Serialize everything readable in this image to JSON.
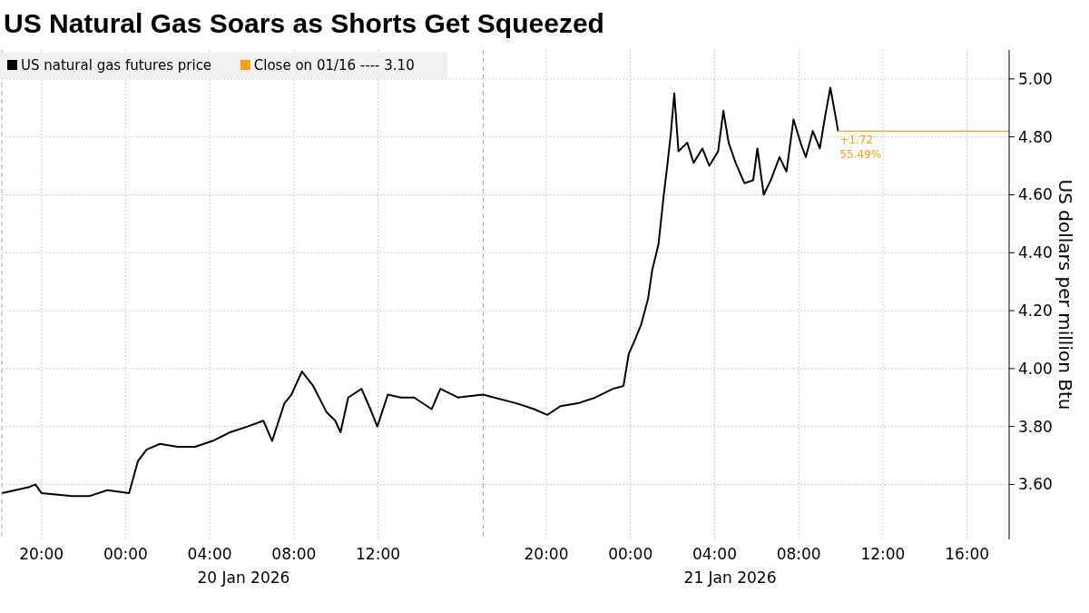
{
  "chart_data": {
    "type": "line",
    "title": "US Natural Gas Soars as Shorts Get Squeezed",
    "ylabel": "US dollars per million Btu",
    "xlim": [
      "2026-01-19T18:07",
      "2026-01-21T18:00"
    ],
    "xticks": [
      {
        "value": "2026-01-19T20:00",
        "label": "20:00"
      },
      {
        "value": "2026-01-20T00:00",
        "label": "00:00"
      },
      {
        "value": "2026-01-20T04:00",
        "label": "04:00"
      },
      {
        "value": "2026-01-20T08:00",
        "label": "08:00"
      },
      {
        "value": "2026-01-20T12:00",
        "label": "12:00"
      },
      {
        "value": "2026-01-20T20:00",
        "label": "20:00"
      },
      {
        "value": "2026-01-21T00:00",
        "label": "00:00"
      },
      {
        "value": "2026-01-21T04:00",
        "label": "04:00"
      },
      {
        "value": "2026-01-21T08:00",
        "label": "08:00"
      },
      {
        "value": "2026-01-21T12:00",
        "label": "12:00"
      },
      {
        "value": "2026-01-21T16:00",
        "label": "16:00"
      }
    ],
    "ylim": [
      3.41,
      5.1
    ],
    "yticks": [
      {
        "value": 3.6,
        "label": "3.60"
      },
      {
        "value": 3.8,
        "label": "3.80"
      },
      {
        "value": 4.0,
        "label": "4.00"
      },
      {
        "value": 4.2,
        "label": "4.20"
      },
      {
        "value": 4.4,
        "label": "4.40"
      },
      {
        "value": 4.6,
        "label": "4.60"
      },
      {
        "value": 4.8,
        "label": "4.80"
      },
      {
        "value": 5.0,
        "label": "5.00"
      }
    ],
    "grid": true,
    "legend": "top left",
    "marker": "none",
    "line_style": "solid",
    "ref_lines": [
      {
        "axis": "x",
        "value": "2026-01-19T18:07",
        "color": "#aaaaaa",
        "line_style": "dashed"
      },
      {
        "axis": "x",
        "value": "2026-01-20T17:00",
        "color": "#aaaaaa",
        "line_style": "dashed"
      }
    ],
    "annotations": [
      {
        "text": "+1.72",
        "x": "2026-01-21T09:52",
        "y": 4.82
      },
      {
        "text": "55.49%",
        "x": "2026-01-21T09:52",
        "y": 4.82
      },
      "20 Jan 2026",
      "21 Jan 2026"
    ],
    "series": [
      {
        "name": "US natural gas futures price",
        "color": "#000000",
        "x": [
          "2026-01-19T18:08",
          "2026-01-19T19:23",
          "2026-01-19T19:43",
          "2026-01-19T20:00",
          "2026-01-19T21:28",
          "2026-01-19T22:18",
          "2026-01-19T23:08",
          "2026-01-20T00:10",
          "2026-01-20T00:35",
          "2026-01-20T01:00",
          "2026-01-20T01:38",
          "2026-01-20T02:28",
          "2026-01-20T03:18",
          "2026-01-20T04:08",
          "2026-01-20T04:58",
          "2026-01-20T05:48",
          "2026-01-20T06:33",
          "2026-01-20T06:58",
          "2026-01-20T07:33",
          "2026-01-20T07:53",
          "2026-01-20T08:23",
          "2026-01-20T08:55",
          "2026-01-20T09:33",
          "2026-01-20T09:58",
          "2026-01-20T10:13",
          "2026-01-20T10:35",
          "2026-01-20T11:13",
          "2026-01-20T11:38",
          "2026-01-20T11:58",
          "2026-01-20T12:28",
          "2026-01-20T13:05",
          "2026-01-20T13:43",
          "2026-01-20T14:33",
          "2026-01-20T14:58",
          "2026-01-20T15:48",
          "2026-01-20T16:59",
          "2026-01-20T18:35",
          "2026-01-20T19:25",
          "2026-01-20T20:03",
          "2026-01-20T20:40",
          "2026-01-20T21:30",
          "2026-01-20T22:20",
          "2026-01-20T23:10",
          "2026-01-20T23:40",
          "2026-01-20T23:55",
          "2026-01-21T00:13",
          "2026-01-21T00:30",
          "2026-01-21T00:50",
          "2026-01-21T01:02",
          "2026-01-21T01:20",
          "2026-01-21T01:35",
          "2026-01-21T01:45",
          "2026-01-21T01:55",
          "2026-01-21T02:05",
          "2026-01-21T02:17",
          "2026-01-21T02:42",
          "2026-01-21T03:00",
          "2026-01-21T03:25",
          "2026-01-21T03:45",
          "2026-01-21T04:10",
          "2026-01-21T04:25",
          "2026-01-21T04:40",
          "2026-01-21T05:00",
          "2026-01-21T05:25",
          "2026-01-21T05:50",
          "2026-01-21T06:02",
          "2026-01-21T06:20",
          "2026-01-21T06:40",
          "2026-01-21T07:05",
          "2026-01-21T07:25",
          "2026-01-21T07:45",
          "2026-01-21T08:05",
          "2026-01-21T08:20",
          "2026-01-21T08:40",
          "2026-01-21T09:00",
          "2026-01-21T09:15",
          "2026-01-21T09:30",
          "2026-01-21T09:45",
          "2026-01-21T09:52"
        ],
        "values": [
          3.57,
          3.59,
          3.6,
          3.57,
          3.56,
          3.56,
          3.58,
          3.57,
          3.68,
          3.72,
          3.74,
          3.73,
          3.73,
          3.75,
          3.78,
          3.8,
          3.82,
          3.75,
          3.88,
          3.91,
          3.99,
          3.94,
          3.85,
          3.82,
          3.78,
          3.9,
          3.93,
          3.86,
          3.8,
          3.91,
          3.9,
          3.9,
          3.86,
          3.93,
          3.9,
          3.91,
          3.88,
          3.86,
          3.84,
          3.87,
          3.88,
          3.9,
          3.93,
          3.94,
          4.05,
          4.1,
          4.15,
          4.24,
          4.34,
          4.43,
          4.6,
          4.7,
          4.81,
          4.95,
          4.75,
          4.78,
          4.71,
          4.76,
          4.7,
          4.75,
          4.89,
          4.78,
          4.71,
          4.64,
          4.65,
          4.76,
          4.6,
          4.65,
          4.73,
          4.68,
          4.86,
          4.78,
          4.73,
          4.82,
          4.76,
          4.87,
          4.97,
          4.87,
          4.82
        ]
      },
      {
        "name": "Close on 01/16 ---- 3.10",
        "color": "#f39f1b",
        "x": [
          "2026-01-21T09:52",
          "2026-01-21T18:00"
        ],
        "values": [
          4.82,
          4.82
        ]
      }
    ]
  }
}
